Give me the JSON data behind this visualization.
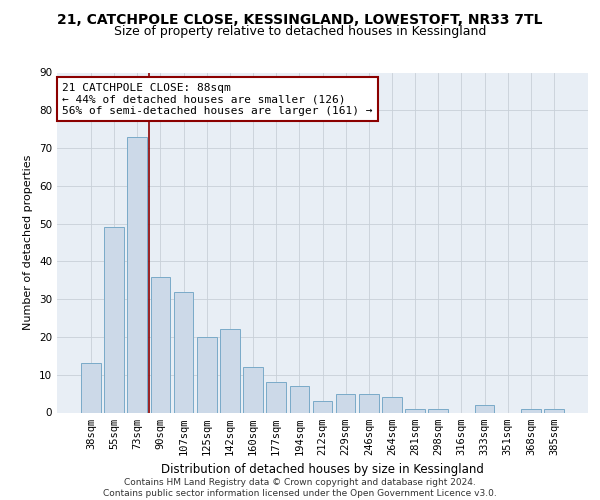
{
  "title1": "21, CATCHPOLE CLOSE, KESSINGLAND, LOWESTOFT, NR33 7TL",
  "title2": "Size of property relative to detached houses in Kessingland",
  "xlabel": "Distribution of detached houses by size in Kessingland",
  "ylabel": "Number of detached properties",
  "categories": [
    "38sqm",
    "55sqm",
    "73sqm",
    "90sqm",
    "107sqm",
    "125sqm",
    "142sqm",
    "160sqm",
    "177sqm",
    "194sqm",
    "212sqm",
    "229sqm",
    "246sqm",
    "264sqm",
    "281sqm",
    "298sqm",
    "316sqm",
    "333sqm",
    "351sqm",
    "368sqm",
    "385sqm"
  ],
  "values": [
    13,
    49,
    73,
    36,
    32,
    20,
    22,
    12,
    8,
    7,
    3,
    5,
    5,
    4,
    1,
    1,
    0,
    2,
    0,
    1,
    1
  ],
  "bar_color": "#ccd9e8",
  "bar_edge_color": "#7aaac8",
  "subject_line_color": "#8b0000",
  "annotation_box_text": "21 CATCHPOLE CLOSE: 88sqm\n← 44% of detached houses are smaller (126)\n56% of semi-detached houses are larger (161) →",
  "annotation_box_color": "#ffffff",
  "annotation_box_edge_color": "#8b0000",
  "ylim": [
    0,
    90
  ],
  "yticks": [
    0,
    10,
    20,
    30,
    40,
    50,
    60,
    70,
    80,
    90
  ],
  "grid_color": "#c8d0d8",
  "background_color": "#e8eef5",
  "footer_text": "Contains HM Land Registry data © Crown copyright and database right 2024.\nContains public sector information licensed under the Open Government Licence v3.0.",
  "title1_fontsize": 10,
  "title2_fontsize": 9,
  "xlabel_fontsize": 8.5,
  "ylabel_fontsize": 8,
  "tick_fontsize": 7.5,
  "annotation_fontsize": 8,
  "footer_fontsize": 6.5
}
